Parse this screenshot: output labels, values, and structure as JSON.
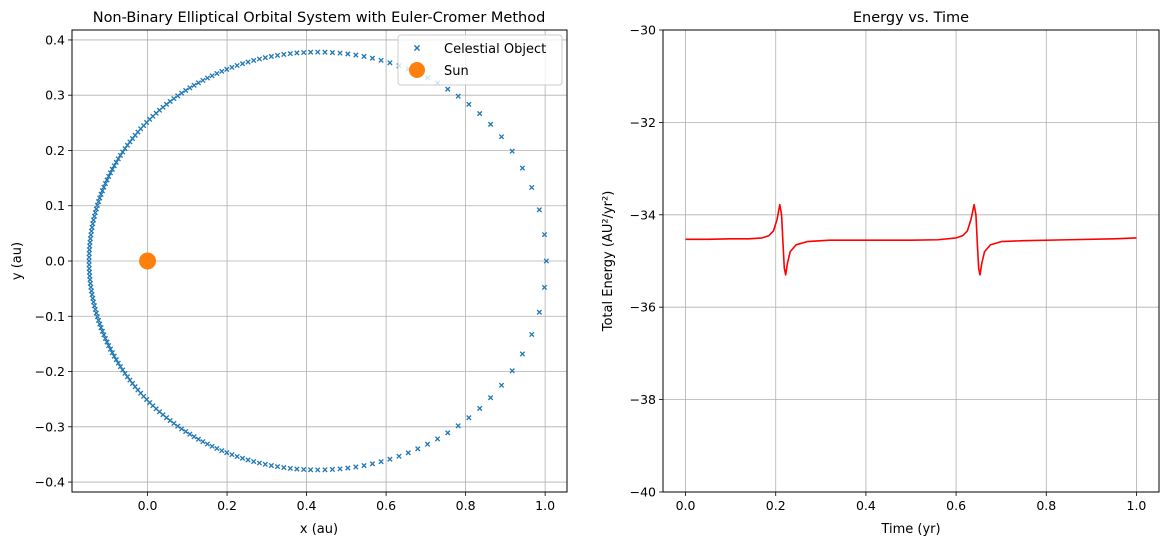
{
  "chart_data": [
    {
      "type": "scatter",
      "title": "Non-Binary Elliptical Orbital System with Euler-Cromer Method",
      "xlabel": "x (au)",
      "ylabel": "y (au)",
      "xlim": [
        -0.19,
        1.055
      ],
      "ylim": [
        -0.418,
        0.418
      ],
      "xticks": [
        0.0,
        0.2,
        0.4,
        0.6,
        0.8,
        1.0
      ],
      "xtick_labels": [
        "0.0",
        "0.2",
        "0.4",
        "0.6",
        "0.8",
        "1.0"
      ],
      "yticks": [
        -0.4,
        -0.3,
        -0.2,
        -0.1,
        0.0,
        0.1,
        0.2,
        0.3,
        0.4
      ],
      "ytick_labels": [
        "−0.4",
        "−0.3",
        "−0.2",
        "−0.1",
        "0.0",
        "0.1",
        "0.2",
        "0.3",
        "0.4"
      ],
      "grid": true,
      "legend": "top-right",
      "series": [
        {
          "name": "Celestial Object",
          "marker": "x",
          "color": "#1f77b4",
          "orbit": {
            "a": 0.575,
            "b": 0.378,
            "center_x": 0.428,
            "center_y": 0.0,
            "eccentricity": 0.754,
            "num_points": 200
          }
        },
        {
          "name": "Sun",
          "marker": "o",
          "color": "#ff7f0e",
          "points": [
            [
              0.0,
              0.0
            ]
          ]
        }
      ]
    },
    {
      "type": "line",
      "title": "Energy vs. Time",
      "xlabel": "Time (yr)",
      "ylabel": "Total Energy (AU²/yr²)",
      "xlim": [
        -0.05,
        1.05
      ],
      "ylim": [
        -40,
        -30
      ],
      "xticks": [
        0.0,
        0.2,
        0.4,
        0.6,
        0.8,
        1.0
      ],
      "xtick_labels": [
        "0.0",
        "0.2",
        "0.4",
        "0.6",
        "0.8",
        "1.0"
      ],
      "yticks": [
        -40,
        -38,
        -36,
        -34,
        -32,
        -30
      ],
      "ytick_labels": [
        "−40",
        "−38",
        "−36",
        "−34",
        "−32",
        "−30"
      ],
      "grid": true,
      "series": [
        {
          "color": "#ff0000",
          "points": [
            [
              0.0,
              -34.53
            ],
            [
              0.05,
              -34.53
            ],
            [
              0.1,
              -34.52
            ],
            [
              0.14,
              -34.52
            ],
            [
              0.17,
              -34.5
            ],
            [
              0.185,
              -34.45
            ],
            [
              0.195,
              -34.35
            ],
            [
              0.203,
              -34.1
            ],
            [
              0.209,
              -33.78
            ],
            [
              0.213,
              -34.0
            ],
            [
              0.216,
              -34.6
            ],
            [
              0.219,
              -35.15
            ],
            [
              0.222,
              -35.3
            ],
            [
              0.226,
              -35.05
            ],
            [
              0.232,
              -34.8
            ],
            [
              0.245,
              -34.65
            ],
            [
              0.27,
              -34.58
            ],
            [
              0.32,
              -34.55
            ],
            [
              0.4,
              -34.55
            ],
            [
              0.5,
              -34.55
            ],
            [
              0.56,
              -34.54
            ],
            [
              0.6,
              -34.5
            ],
            [
              0.615,
              -34.45
            ],
            [
              0.625,
              -34.35
            ],
            [
              0.633,
              -34.1
            ],
            [
              0.64,
              -33.78
            ],
            [
              0.644,
              -34.0
            ],
            [
              0.647,
              -34.6
            ],
            [
              0.65,
              -35.15
            ],
            [
              0.653,
              -35.3
            ],
            [
              0.657,
              -35.05
            ],
            [
              0.663,
              -34.8
            ],
            [
              0.676,
              -34.65
            ],
            [
              0.7,
              -34.58
            ],
            [
              0.75,
              -34.56
            ],
            [
              0.85,
              -34.54
            ],
            [
              0.95,
              -34.52
            ],
            [
              1.0,
              -34.5
            ]
          ]
        }
      ]
    }
  ]
}
